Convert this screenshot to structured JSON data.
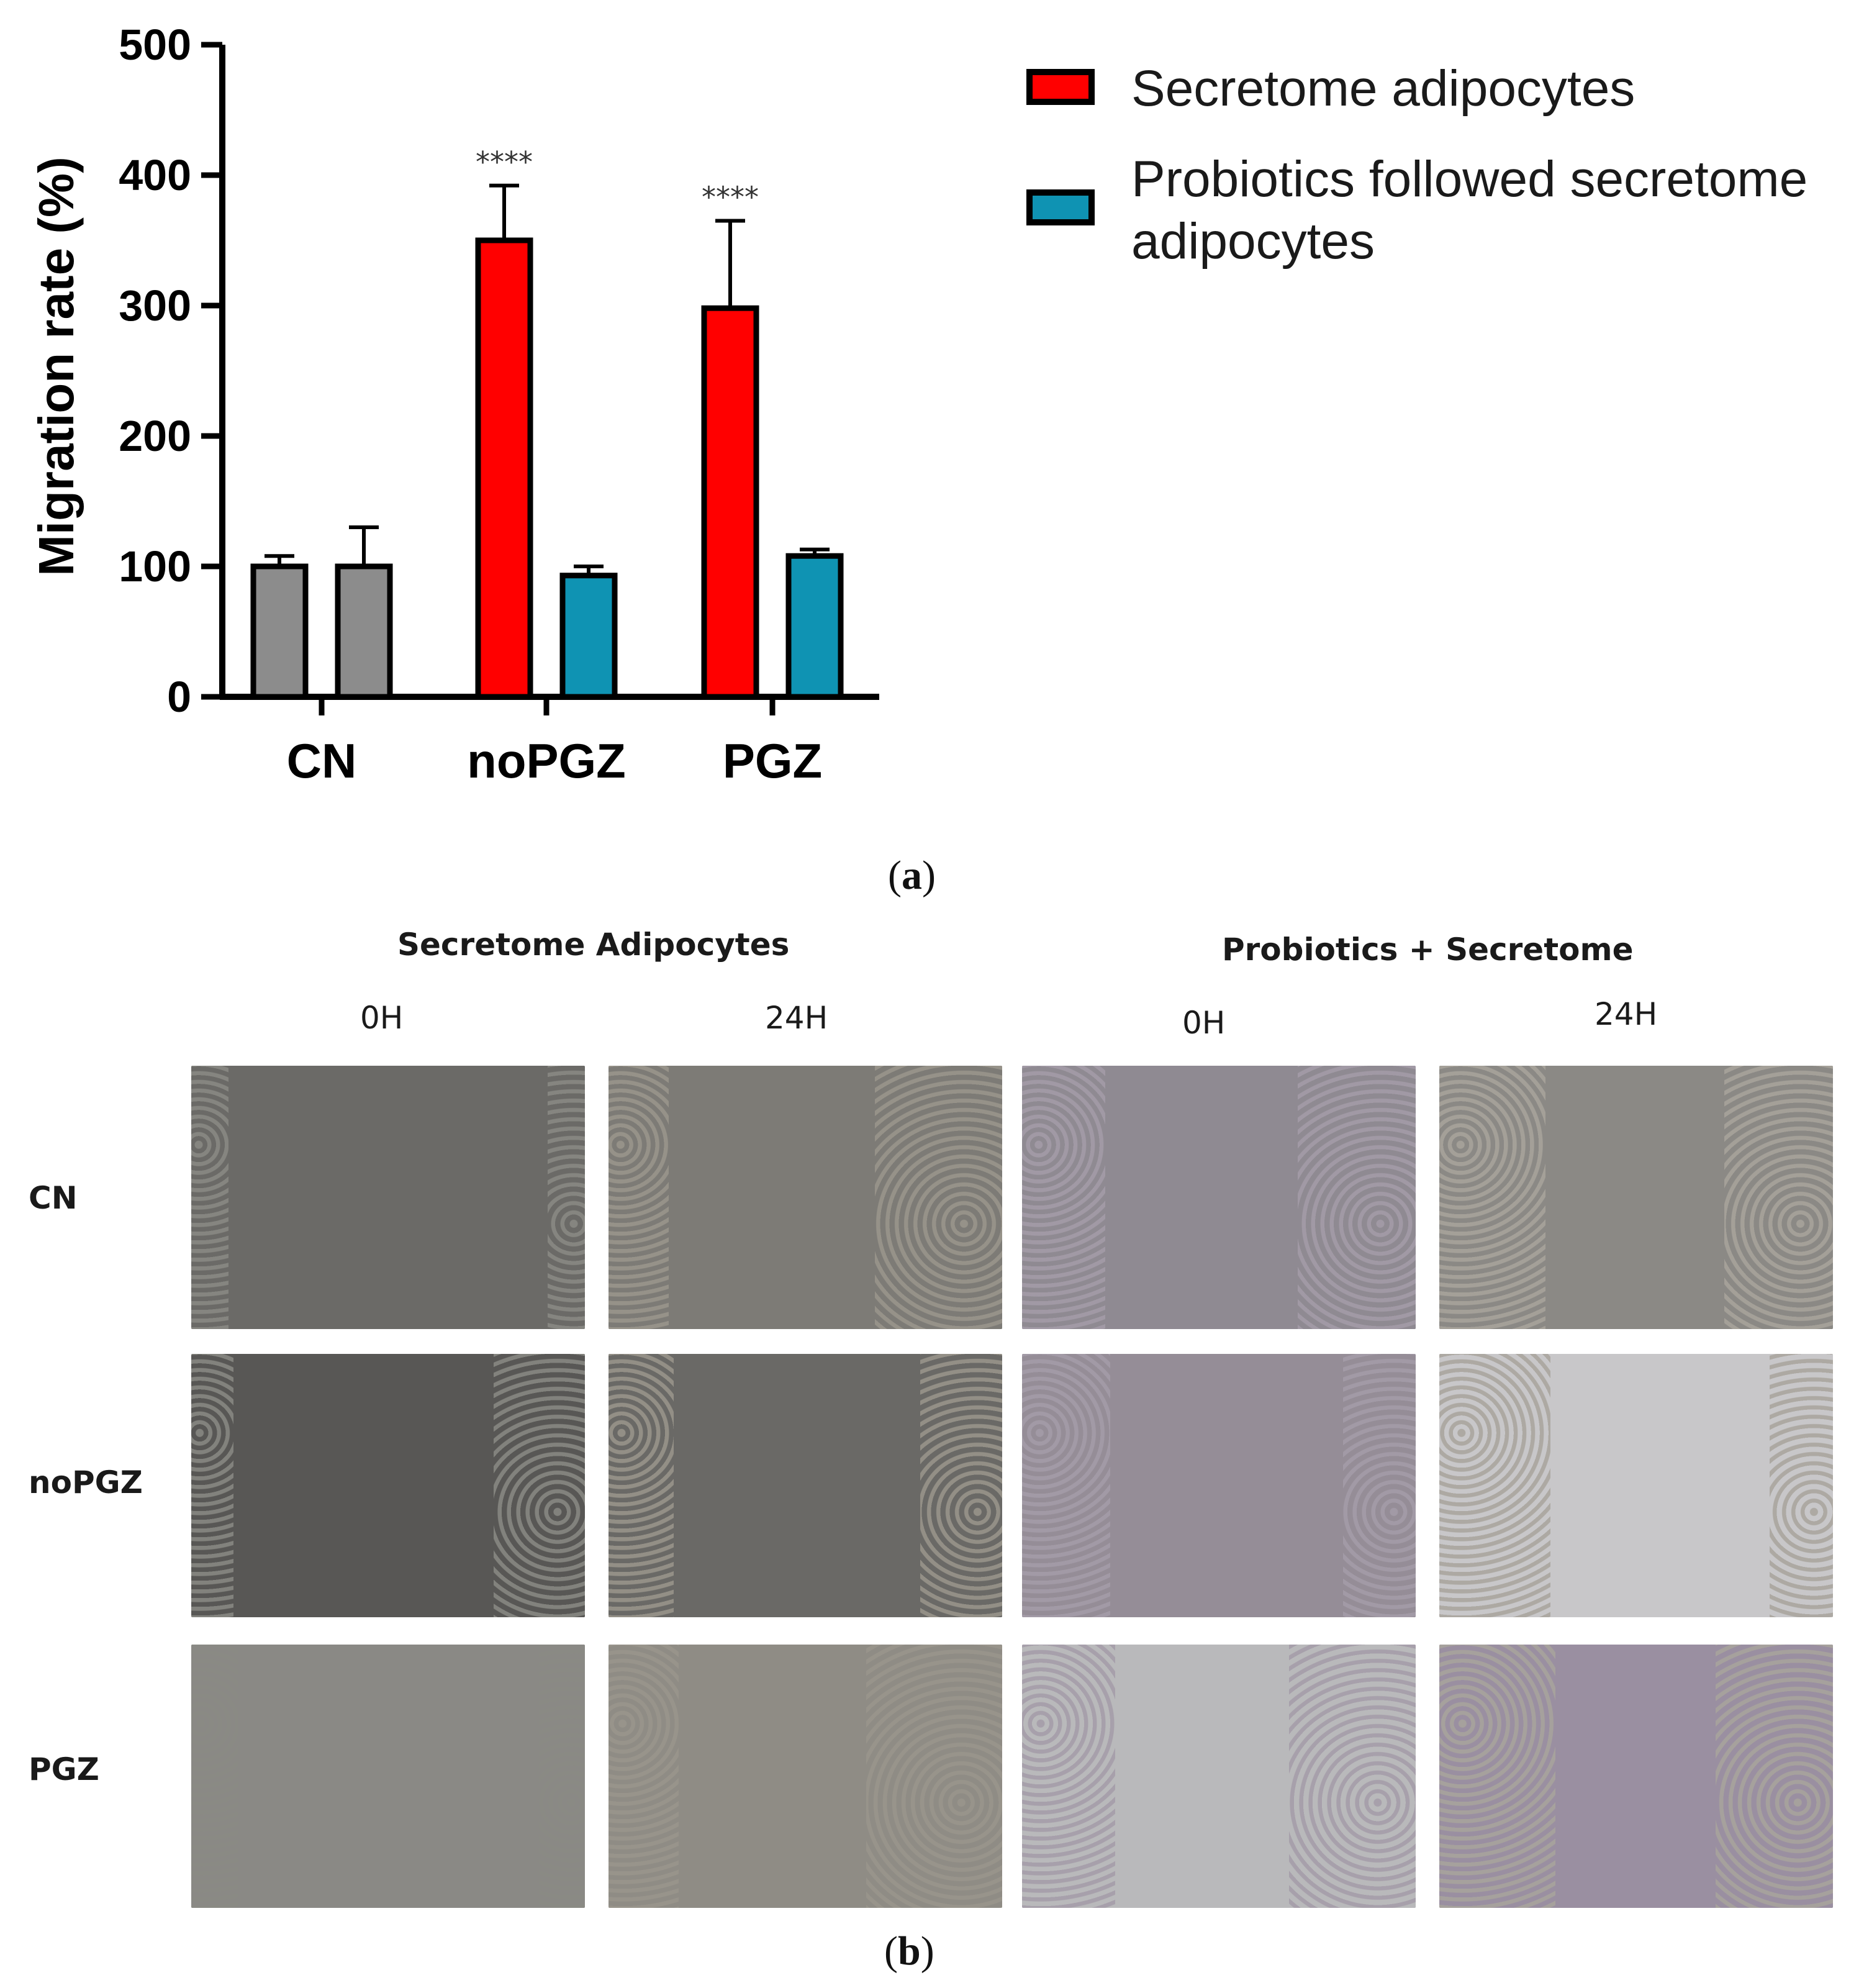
{
  "chart_data": {
    "type": "bar",
    "ylabel": "Migration rate (%)",
    "ylim": [
      0,
      500
    ],
    "yticks": [
      0,
      100,
      200,
      300,
      400,
      500
    ],
    "categories": [
      "CN",
      "noPGZ",
      "PGZ"
    ],
    "series": [
      {
        "name": "Secretome adipocytes",
        "color": "#ff0000",
        "values": [
          100,
          350,
          298
        ],
        "errors": [
          8,
          42,
          67
        ],
        "significance": [
          "",
          "****",
          "****"
        ]
      },
      {
        "name": "Probiotics followed secretome adipocytes",
        "color": "#0f93b3",
        "values": [
          100,
          93,
          108
        ],
        "errors": [
          30,
          7,
          5
        ],
        "significance": [
          "",
          "",
          ""
        ]
      }
    ],
    "control_color": "#8c8c8c",
    "legend_position": "top-right",
    "grid": false
  },
  "captions": {
    "a": "a",
    "b": "b"
  },
  "micrographs": {
    "column_groups": [
      "Secretome Adipocytes",
      "Probiotics + Secretome"
    ],
    "time_points": [
      "0H",
      "24H",
      "0H",
      "24H"
    ],
    "rows": [
      "CN",
      "noPGZ",
      "PGZ"
    ]
  }
}
